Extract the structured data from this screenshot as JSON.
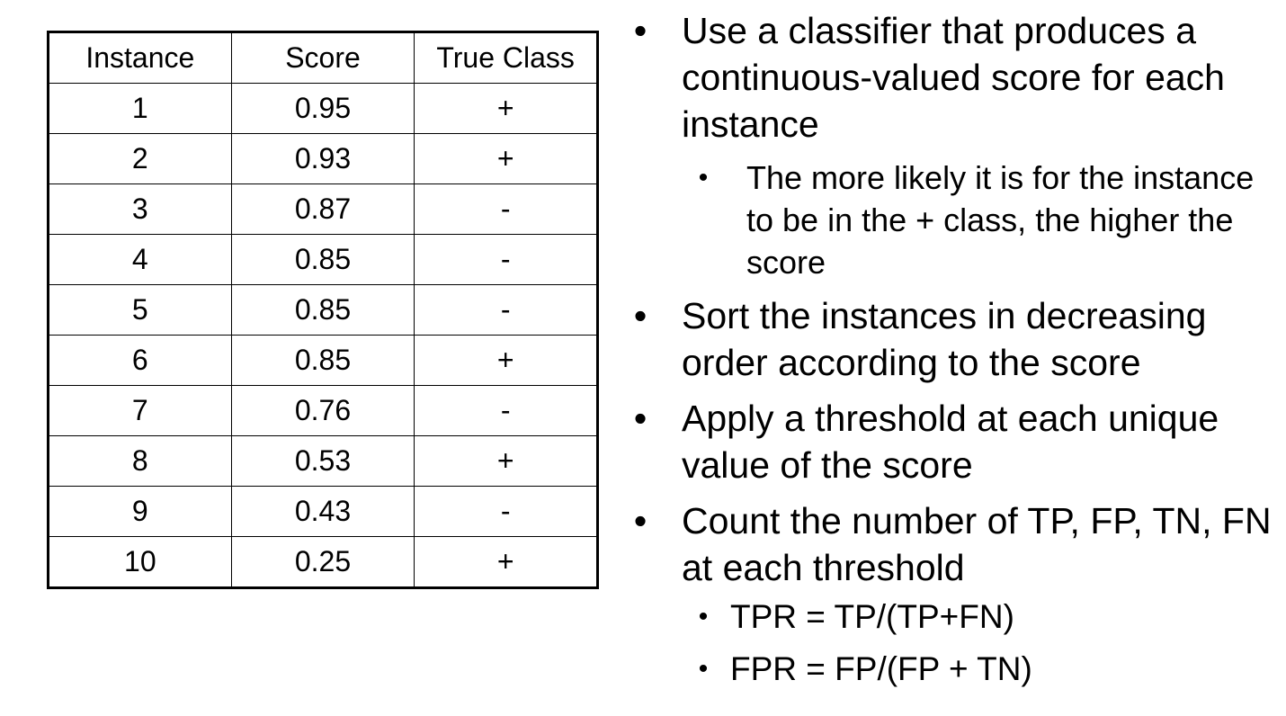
{
  "table": {
    "headers": [
      "Instance",
      "Score",
      "True Class"
    ],
    "rows": [
      [
        "1",
        "0.95",
        "+"
      ],
      [
        "2",
        "0.93",
        "+"
      ],
      [
        "3",
        "0.87",
        "-"
      ],
      [
        "4",
        "0.85",
        "-"
      ],
      [
        "5",
        "0.85",
        "-"
      ],
      [
        "6",
        "0.85",
        "+"
      ],
      [
        "7",
        "0.76",
        "-"
      ],
      [
        "8",
        "0.53",
        "+"
      ],
      [
        "9",
        "0.43",
        "-"
      ],
      [
        "10",
        "0.25",
        "+"
      ]
    ]
  },
  "bullets": {
    "bullet_char": "•",
    "items": [
      "Use a classifier that produces a continuous-valued score for each instance",
      "The more likely it is for the instance to be in the + class, the higher the score",
      "Sort the instances in decreasing order according to the score",
      "Apply a threshold at each unique value of the score",
      "Count the number of TP, FP, TN, FN at each threshold",
      "TPR = TP/(TP+FN)",
      "FPR = FP/(FP + TN)"
    ]
  }
}
